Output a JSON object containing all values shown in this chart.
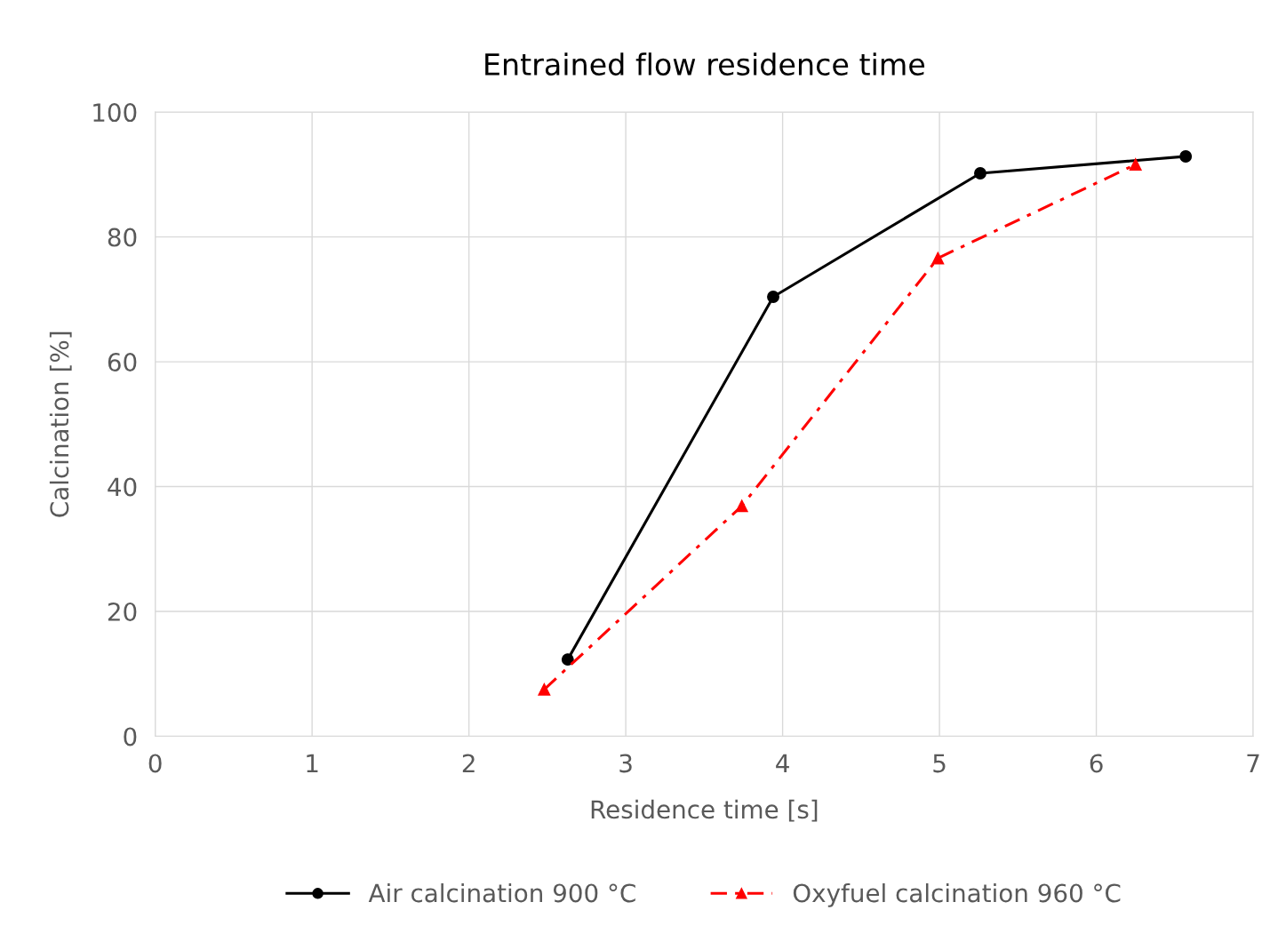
{
  "chart_data": {
    "type": "line",
    "title": "Entrained flow residence time",
    "xlabel": "Residence time [s]",
    "ylabel": "Calcination [%]",
    "xlim": [
      0,
      7
    ],
    "xticks": [
      0,
      1,
      2,
      3,
      4,
      5,
      6,
      7
    ],
    "ylim": [
      0,
      100
    ],
    "yticks": [
      0,
      20,
      40,
      60,
      80,
      100
    ],
    "grid": true,
    "legend": "bottom",
    "series": [
      {
        "name": "Air calcination 900 °C",
        "color": "#000000",
        "x": [
          2.63,
          3.94,
          5.26,
          6.57
        ],
        "values": [
          12.3,
          70.4,
          90.2,
          92.9
        ],
        "marker": "circle",
        "line_style": "solid"
      },
      {
        "name": "Oxyfuel calcination 960 °C",
        "color": "#ff0000",
        "x": [
          2.48,
          3.74,
          4.99,
          6.25
        ],
        "values": [
          7.5,
          36.9,
          76.6,
          91.6
        ],
        "marker": "triangle",
        "line_style": "dashdot"
      }
    ]
  }
}
